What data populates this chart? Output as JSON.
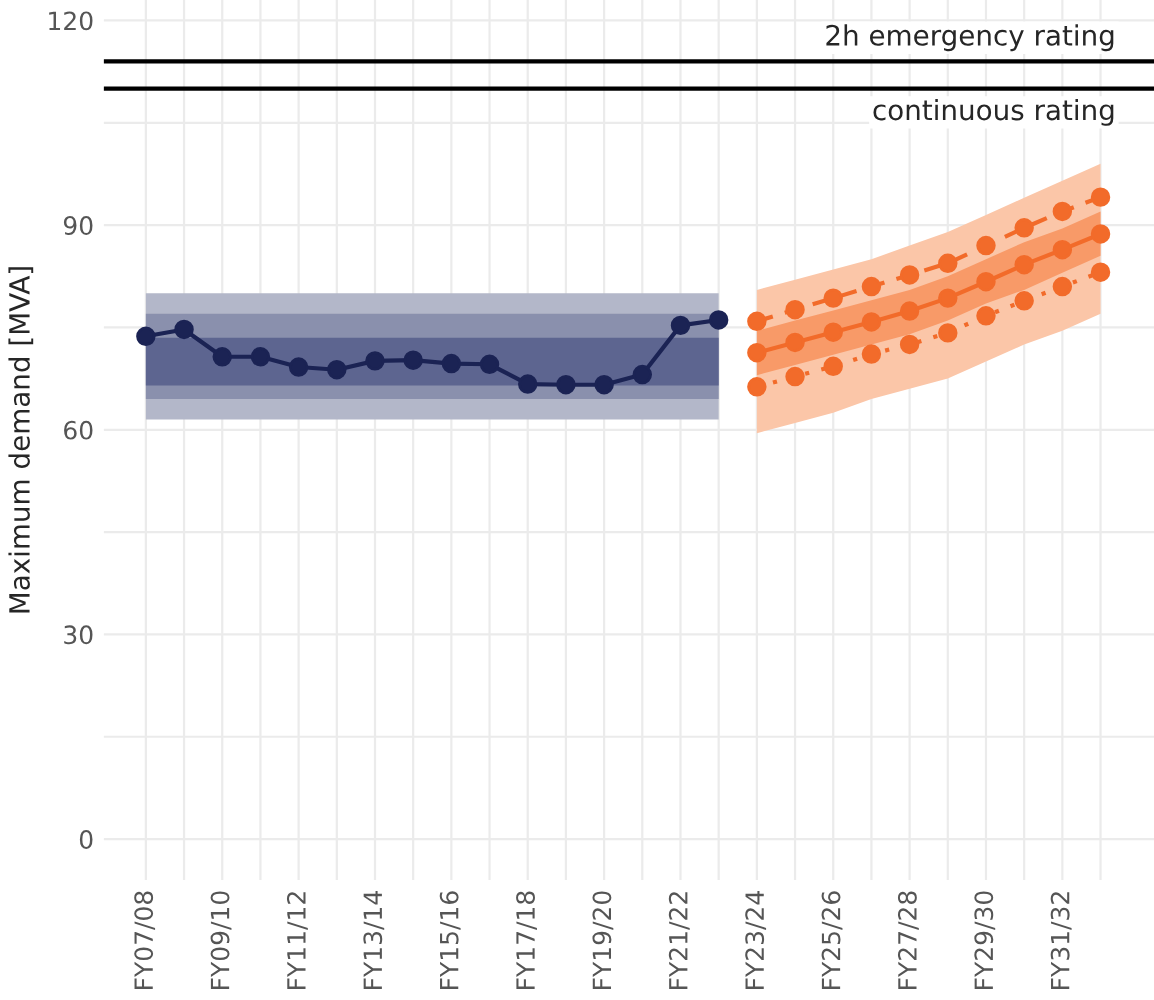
{
  "chart_data": {
    "type": "line",
    "ylabel": "Maximum demand [MVA]",
    "categories": [
      "FY07/08",
      null,
      "FY09/10",
      null,
      "FY11/12",
      null,
      "FY13/14",
      null,
      "FY15/16",
      null,
      "FY17/18",
      null,
      "FY19/20",
      null,
      "FY21/22",
      null,
      "FY23/24",
      null,
      "FY25/26",
      null,
      "FY27/28",
      null,
      "FY29/30",
      null,
      "FY31/32",
      null
    ],
    "ylim": [
      -6,
      123
    ],
    "yticks": [
      0,
      {
        "value": 15,
        "label": null
      },
      30,
      {
        "value": 45,
        "label": null
      },
      60,
      {
        "value": 75,
        "label": null
      },
      90,
      {
        "value": 105,
        "label": null
      },
      120
    ],
    "grid": true,
    "marker": "circle",
    "series": [
      {
        "type": "area",
        "color": "#b3b7c9",
        "values": [
          null,
          null,
          null,
          null,
          null,
          null,
          null,
          null,
          null,
          null,
          null,
          null,
          null,
          null,
          null,
          null,
          null,
          null,
          null,
          null,
          null,
          null,
          null,
          null,
          null,
          null
        ],
        "lower": [
          61.5,
          61.5,
          61.5,
          61.5,
          61.5,
          61.5,
          61.5,
          61.5,
          61.5,
          61.5,
          61.5,
          61.5,
          61.5,
          61.5,
          61.5,
          61.5,
          null,
          null,
          null,
          null,
          null,
          null,
          null,
          null,
          null,
          null
        ],
        "upper": [
          80,
          80,
          80,
          80,
          80,
          80,
          80,
          80,
          80,
          80,
          80,
          80,
          80,
          80,
          80,
          80,
          null,
          null,
          null,
          null,
          null,
          null,
          null,
          null,
          null,
          null
        ]
      },
      {
        "type": "area",
        "color": "#8a90ad",
        "values": [
          null,
          null,
          null,
          null,
          null,
          null,
          null,
          null,
          null,
          null,
          null,
          null,
          null,
          null,
          null,
          null,
          null,
          null,
          null,
          null,
          null,
          null,
          null,
          null,
          null,
          null
        ],
        "lower": [
          64.5,
          64.5,
          64.5,
          64.5,
          64.5,
          64.5,
          64.5,
          64.5,
          64.5,
          64.5,
          64.5,
          64.5,
          64.5,
          64.5,
          64.5,
          64.5,
          null,
          null,
          null,
          null,
          null,
          null,
          null,
          null,
          null,
          null
        ],
        "upper": [
          77,
          77,
          77,
          77,
          77,
          77,
          77,
          77,
          77,
          77,
          77,
          77,
          77,
          77,
          77,
          77,
          null,
          null,
          null,
          null,
          null,
          null,
          null,
          null,
          null,
          null
        ]
      },
      {
        "type": "area",
        "color": "#5d6590",
        "values": [
          null,
          null,
          null,
          null,
          null,
          null,
          null,
          null,
          null,
          null,
          null,
          null,
          null,
          null,
          null,
          null,
          null,
          null,
          null,
          null,
          null,
          null,
          null,
          null,
          null,
          null
        ],
        "lower": [
          66.5,
          66.5,
          66.5,
          66.5,
          66.5,
          66.5,
          66.5,
          66.5,
          66.5,
          66.5,
          66.5,
          66.5,
          66.5,
          66.5,
          66.5,
          66.5,
          null,
          null,
          null,
          null,
          null,
          null,
          null,
          null,
          null,
          null
        ],
        "upper": [
          73.5,
          73.5,
          73.5,
          73.5,
          73.5,
          73.5,
          73.5,
          73.5,
          73.5,
          73.5,
          73.5,
          73.5,
          73.5,
          73.5,
          73.5,
          73.5,
          null,
          null,
          null,
          null,
          null,
          null,
          null,
          null,
          null,
          null
        ]
      },
      {
        "type": "area",
        "color": "#fbc6a8",
        "values": [
          null,
          null,
          null,
          null,
          null,
          null,
          null,
          null,
          null,
          null,
          null,
          null,
          null,
          null,
          null,
          null,
          null,
          null,
          null,
          null,
          null,
          null,
          null,
          null,
          null,
          null
        ],
        "lower": [
          null,
          null,
          null,
          null,
          null,
          null,
          null,
          null,
          null,
          null,
          null,
          null,
          null,
          null,
          null,
          null,
          59.5,
          61,
          62.5,
          64.5,
          66,
          67.5,
          70,
          72.5,
          74.5,
          77
        ],
        "upper": [
          null,
          null,
          null,
          null,
          null,
          null,
          null,
          null,
          null,
          null,
          null,
          null,
          null,
          null,
          null,
          null,
          80.5,
          82,
          83.5,
          85,
          87,
          89,
          91.5,
          94,
          96.5,
          99
        ]
      },
      {
        "type": "area",
        "color": "#f89a68",
        "values": [
          null,
          null,
          null,
          null,
          null,
          null,
          null,
          null,
          null,
          null,
          null,
          null,
          null,
          null,
          null,
          null,
          null,
          null,
          null,
          null,
          null,
          null,
          null,
          null,
          null,
          null
        ],
        "lower": [
          null,
          null,
          null,
          null,
          null,
          null,
          null,
          null,
          null,
          null,
          null,
          null,
          null,
          null,
          null,
          null,
          68,
          69.5,
          71,
          72.5,
          74,
          76,
          78.5,
          80.5,
          83,
          85.5
        ],
        "upper": [
          null,
          null,
          null,
          null,
          null,
          null,
          null,
          null,
          null,
          null,
          null,
          null,
          null,
          null,
          null,
          null,
          74.5,
          76,
          77.5,
          79,
          80.5,
          82.5,
          85,
          87.5,
          89.5,
          92
        ]
      },
      {
        "color": "#1b2354",
        "line_style": "solid",
        "values": [
          73.7,
          74.7,
          70.7,
          70.7,
          69.2,
          68.8,
          70.1,
          70.2,
          69.7,
          69.6,
          66.7,
          66.6,
          66.6,
          68.1,
          75.3,
          76.1,
          null,
          null,
          null,
          null,
          null,
          null,
          null,
          null,
          null,
          null
        ]
      },
      {
        "color": "#f26b2a",
        "line_style": "dashed",
        "values": [
          null,
          null,
          null,
          null,
          null,
          null,
          null,
          null,
          null,
          null,
          null,
          null,
          null,
          null,
          null,
          null,
          75.9,
          77.6,
          79.3,
          81.0,
          82.7,
          84.4,
          87.0,
          89.6,
          92.0,
          94.1
        ]
      },
      {
        "color": "#f26b2a",
        "line_style": "solid",
        "values": [
          null,
          null,
          null,
          null,
          null,
          null,
          null,
          null,
          null,
          null,
          null,
          null,
          null,
          null,
          null,
          null,
          71.3,
          72.8,
          74.3,
          75.8,
          77.4,
          79.3,
          81.7,
          84.2,
          86.4,
          88.7
        ]
      },
      {
        "color": "#f26b2a",
        "line_style": "dotted",
        "values": [
          null,
          null,
          null,
          null,
          null,
          null,
          null,
          null,
          null,
          null,
          null,
          null,
          null,
          null,
          null,
          null,
          66.3,
          67.8,
          69.3,
          71.1,
          72.5,
          74.2,
          76.7,
          78.9,
          81.0,
          83.1
        ]
      }
    ],
    "ref_lines": [
      {
        "axis": "y",
        "value": 114,
        "label": "2h emergency rating",
        "color": "#000000",
        "line_style": "solid"
      },
      {
        "axis": "y",
        "value": 110,
        "label": "continuous rating",
        "color": "#000000",
        "line_style": "solid"
      }
    ]
  }
}
